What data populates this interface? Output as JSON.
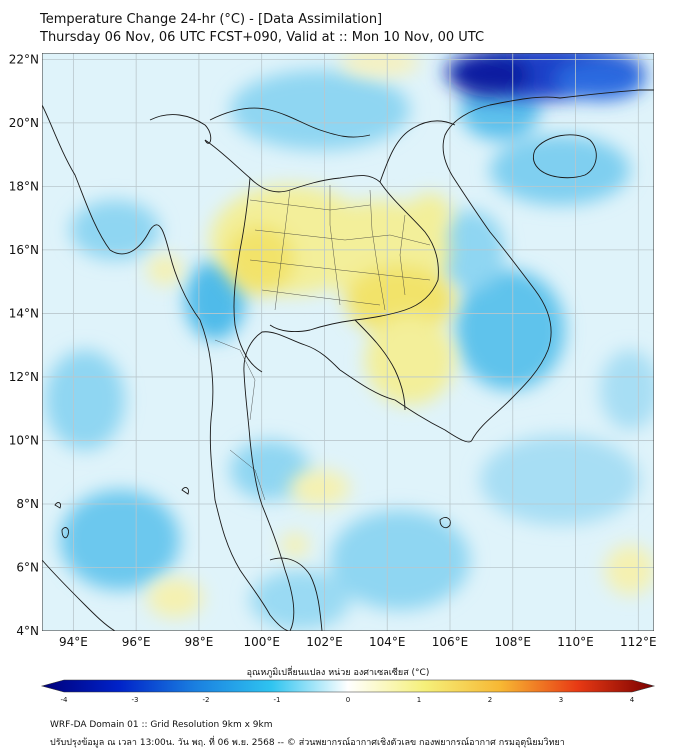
{
  "title": {
    "line1": "Temperature Change 24-hr (°C) - [Data Assimilation]",
    "line2": "Thursday 06 Nov, 06 UTC FCST+090, Valid at :: Mon 10 Nov, 00 UTC"
  },
  "map": {
    "lat_labels": [
      "22°N",
      "20°N",
      "18°N",
      "16°N",
      "14°N",
      "12°N",
      "10°N",
      "8°N",
      "6°N",
      "4°N"
    ],
    "lon_labels": [
      "94°E",
      "96°E",
      "98°E",
      "100°E",
      "102°E",
      "104°E",
      "106°E",
      "108°E",
      "110°E",
      "112°E"
    ],
    "lat_values": [
      22,
      20,
      18,
      16,
      14,
      12,
      10,
      8,
      6,
      4
    ],
    "lon_values": [
      94,
      96,
      98,
      100,
      102,
      104,
      106,
      108,
      110,
      112
    ],
    "extent": {
      "lon_min": 93,
      "lon_max": 112.5,
      "lat_min": 4,
      "lat_max": 22.2
    },
    "colors": {
      "cold_strong": "#0d1fa0",
      "cold": "#2aa7e6",
      "cool": "#8fd6f2",
      "neutral": "#e9f7fb",
      "warm": "#f3ef9a",
      "warm_strong": "#f2e36a",
      "border": "#1a1a1a",
      "grid": "#aaaaaa"
    }
  },
  "colorbar": {
    "label": "อุณหภูมิเปลี่ยนแปลง หน่วย องศาเซลเซียส (°C)",
    "ticks": [
      "-4",
      "-3",
      "-2",
      "-1",
      "0",
      "1",
      "2",
      "3",
      "4"
    ],
    "tick_values": [
      -4,
      -3,
      -2,
      -1,
      0,
      1,
      2,
      3,
      4
    ],
    "min": -4,
    "max": 4,
    "stops": [
      "#00007a",
      "#0022c8",
      "#1a7fe0",
      "#2fc4f0",
      "#ffffff",
      "#f5f07a",
      "#f7b733",
      "#e83a14",
      "#7a0000"
    ]
  },
  "footer": {
    "line1": "WRF-DA Domain 01 :: Grid Resolution 9km x 9km",
    "line2": "ปรับปรุงข้อมูล ณ เวลา 13:00น. วัน พฤ. ที่ 06 พ.ย. 2568 -- © ส่วนพยากรณ์อากาศเชิงตัวเลข กองพยากรณ์อากาศ กรมอุตุนิยมวิทยา"
  }
}
